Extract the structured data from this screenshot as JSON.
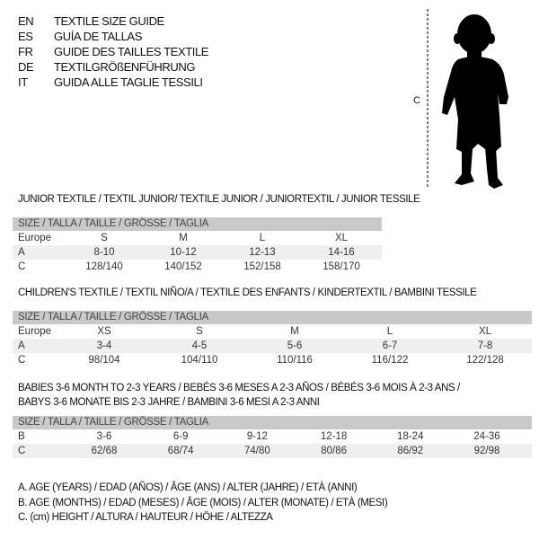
{
  "header": [
    {
      "code": "EN",
      "text": "TEXTILE SIZE GUIDE"
    },
    {
      "code": "ES",
      "text": "GUÍA DE TALLAS"
    },
    {
      "code": "FR",
      "text": "GUIDE DES TAILLES TEXTILE"
    },
    {
      "code": "DE",
      "text": "TEXTILGRÖßENFÜHRUNG"
    },
    {
      "code": "IT",
      "text": "GUIDA ALLE TAGLIE TESSILI"
    }
  ],
  "figure": {
    "measure_label": "C",
    "icon": "baby-silhouette"
  },
  "colors": {
    "header_bar": "#c9c9c9",
    "shaded_row": "#efefef"
  },
  "tables": [
    {
      "title": [
        "JUNIOR TEXTILE / TEXTIL JUNIOR/ TEXTILE JUNIOR / JUNIORTEXTIL / JUNIOR TESSILE"
      ],
      "size_header": "SIZE / TALLA / TAILLE / GRÖSSE / TAGLIA",
      "rows": [
        {
          "label": "Europe",
          "values": [
            "S",
            "M",
            "L",
            "XL"
          ]
        },
        {
          "label": "A",
          "values": [
            "8-10",
            "10-12",
            "12-13",
            "14-16"
          ]
        },
        {
          "label": "C",
          "values": [
            "128/140",
            "140/152",
            "152/158",
            "158/170"
          ]
        }
      ]
    },
    {
      "title": [
        "CHILDREN'S TEXTILE / TEXTIL NIÑO/A / TEXTILE DES ENFANTS / KINDERTEXTIL / BAMBINI TESSILE"
      ],
      "size_header": "SIZE / TALLA / TAILLE / GRÖSSE / TAGLIA",
      "rows": [
        {
          "label": "Europe",
          "values": [
            "XS",
            "S",
            "M",
            "L",
            "XL"
          ]
        },
        {
          "label": "A",
          "values": [
            "3-4",
            "4-5",
            "5-6",
            "6-7",
            "7-8"
          ]
        },
        {
          "label": "C",
          "values": [
            "98/104",
            "104/110",
            "110/116",
            "116/122",
            "122/128"
          ]
        }
      ]
    },
    {
      "title": [
        "BABIES 3-6 MONTH TO 2-3 YEARS / BEBÉS 3-6 MESES A 2-3 AÑOS / BÉBÉS 3-6 MOIS À 2-3 ANS /",
        "BABYS 3-6 MONATE BIS 2-3 JAHRE / BAMBINI 3-6 MESI A 2-3 ANNI"
      ],
      "size_header": "SIZE / TALLA / TAILLE / GRÖSSE / TAGLIA",
      "rows": [
        {
          "label": "B",
          "values": [
            "3-6",
            "6-9",
            "9-12",
            "12-18",
            "18-24",
            "24-36"
          ]
        },
        {
          "label": "C",
          "values": [
            "62/68",
            "68/74",
            "74/80",
            "80/86",
            "86/92",
            "92/98"
          ]
        }
      ]
    }
  ],
  "legend": [
    "A. AGE (YEARS) / EDAD (AÑOS) / ÂGE (ANS) / ALTER (JAHRE) / ETÀ (ANNI)",
    "B. AGE (MONTHS) / EDAD (MESES) / ÂGE (MOIS) / ALTER (MONATE) / ETÀ (MESI)",
    "C. (cm) HEIGHT / ALTURA / HAUTEUR / HÖHE / ALTEZZA"
  ]
}
